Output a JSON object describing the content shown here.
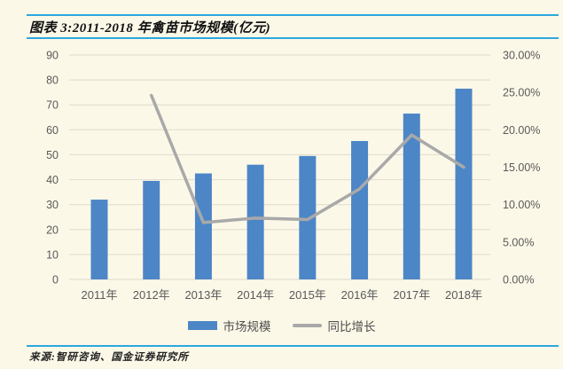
{
  "header": {
    "title": "图表 3:2011-2018 年禽苗市场规模(亿元)"
  },
  "chart_data": {
    "type": "bar",
    "title": "2011-2018 年禽苗市场规模(亿元)",
    "categories": [
      "2011年",
      "2012年",
      "2013年",
      "2014年",
      "2015年",
      "2016年",
      "2017年",
      "2018年"
    ],
    "series": [
      {
        "name": "市场规模",
        "type": "bar",
        "axis": "left",
        "color": "#4C86C6",
        "values": [
          32,
          39.5,
          42.5,
          46,
          49.5,
          55.5,
          66.5,
          76.5
        ]
      },
      {
        "name": "同比增长",
        "type": "line",
        "axis": "right",
        "color": "#A9A9A9",
        "values": [
          null,
          24.6,
          7.6,
          8.2,
          8.0,
          12.1,
          19.3,
          15.0
        ]
      }
    ],
    "left_axis": {
      "min": 0,
      "max": 90,
      "step": 10,
      "tick_labels": [
        "0",
        "10",
        "20",
        "30",
        "40",
        "50",
        "60",
        "70",
        "80",
        "90"
      ]
    },
    "right_axis": {
      "min": 0,
      "max": 30,
      "step": 5,
      "tick_labels": [
        "0.00%",
        "5.00%",
        "10.00%",
        "15.00%",
        "20.00%",
        "25.00%",
        "30.00%"
      ]
    },
    "grid": true,
    "legend_position": "bottom",
    "xlabel": "",
    "ylabel": ""
  },
  "footer": {
    "source": "来源:智研咨询、国金证券研究所"
  },
  "colors": {
    "background": "#FCF8E8",
    "accent_rule": "#2DA7DE",
    "bar": "#4C86C6",
    "line": "#A9A9A9",
    "gridline": "#E3DFD2",
    "axis_text": "#595959"
  }
}
